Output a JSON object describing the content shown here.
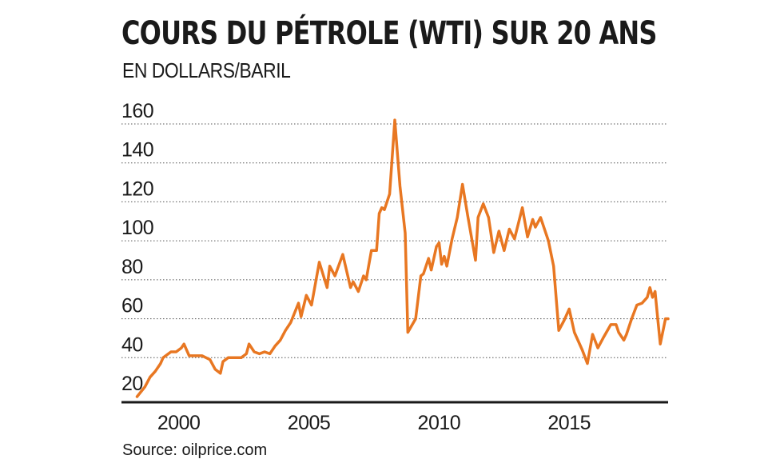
{
  "title": "COURS DU PÉTROLE (WTI) SUR 20 ANS",
  "subtitle": "EN DOLLARS/BARIL",
  "source": "Source: oilprice.com",
  "colors": {
    "line": "#e87722",
    "text": "#1a1a1a",
    "grid": "#555555",
    "axis": "#1a1a1a"
  },
  "chart_data": {
    "type": "line",
    "title": "COURS DU PÉTROLE (WTI) SUR 20 ANS",
    "ylabel": "EN DOLLARS/BARIL",
    "xlabel": "",
    "xlim": [
      1998,
      2018.3
    ],
    "ylim": [
      20,
      160
    ],
    "y_ticks": [
      20,
      40,
      60,
      80,
      100,
      120,
      140,
      160
    ],
    "x_ticks": [
      2000,
      2005,
      2010,
      2015
    ],
    "grid": "horizontal-dotted",
    "legend": "none",
    "series": [
      {
        "values": [
          [
            1998.6,
            20
          ],
          [
            1998.9,
            25
          ],
          [
            1999.1,
            30
          ],
          [
            1999.3,
            33
          ],
          [
            1999.5,
            37
          ],
          [
            1999.6,
            40
          ],
          [
            1999.9,
            43
          ],
          [
            2000.1,
            43
          ],
          [
            2000.3,
            45
          ],
          [
            2000.4,
            47
          ],
          [
            2000.6,
            41
          ],
          [
            2000.9,
            41
          ],
          [
            2001.1,
            41
          ],
          [
            2001.4,
            39
          ],
          [
            2001.6,
            34
          ],
          [
            2001.8,
            32
          ],
          [
            2001.9,
            38
          ],
          [
            2002.1,
            40
          ],
          [
            2002.4,
            40
          ],
          [
            2002.6,
            40
          ],
          [
            2002.8,
            42
          ],
          [
            2002.9,
            47
          ],
          [
            2003.1,
            43
          ],
          [
            2003.3,
            42
          ],
          [
            2003.5,
            43
          ],
          [
            2003.7,
            42
          ],
          [
            2003.9,
            46
          ],
          [
            2004.1,
            49
          ],
          [
            2004.3,
            54
          ],
          [
            2004.5,
            58
          ],
          [
            2004.8,
            68
          ],
          [
            2004.9,
            61
          ],
          [
            2005.1,
            72
          ],
          [
            2005.3,
            67
          ],
          [
            2005.6,
            89
          ],
          [
            2005.9,
            76
          ],
          [
            2006.0,
            87
          ],
          [
            2006.2,
            82
          ],
          [
            2006.5,
            93
          ],
          [
            2006.8,
            76
          ],
          [
            2006.9,
            79
          ],
          [
            2007.1,
            74
          ],
          [
            2007.3,
            82
          ],
          [
            2007.4,
            80
          ],
          [
            2007.6,
            95
          ],
          [
            2007.8,
            95
          ],
          [
            2007.9,
            114
          ],
          [
            2008.0,
            117
          ],
          [
            2008.1,
            116
          ],
          [
            2008.3,
            124
          ],
          [
            2008.5,
            162
          ],
          [
            2008.7,
            128
          ],
          [
            2008.9,
            104
          ],
          [
            2009.0,
            53
          ],
          [
            2009.3,
            60
          ],
          [
            2009.5,
            82
          ],
          [
            2009.6,
            83
          ],
          [
            2009.8,
            91
          ],
          [
            2009.9,
            85
          ],
          [
            2010.1,
            97
          ],
          [
            2010.2,
            99
          ],
          [
            2010.3,
            88
          ],
          [
            2010.4,
            92
          ],
          [
            2010.5,
            87
          ],
          [
            2010.7,
            101
          ],
          [
            2010.9,
            112
          ],
          [
            2011.1,
            129
          ],
          [
            2011.3,
            113
          ],
          [
            2011.6,
            90
          ],
          [
            2011.7,
            112
          ],
          [
            2011.9,
            119
          ],
          [
            2012.1,
            112
          ],
          [
            2012.3,
            94
          ],
          [
            2012.5,
            105
          ],
          [
            2012.7,
            95
          ],
          [
            2012.9,
            106
          ],
          [
            2013.1,
            101
          ],
          [
            2013.4,
            117
          ],
          [
            2013.6,
            102
          ],
          [
            2013.8,
            111
          ],
          [
            2013.9,
            107
          ],
          [
            2014.1,
            112
          ],
          [
            2014.4,
            100
          ],
          [
            2014.6,
            87
          ],
          [
            2014.8,
            54
          ],
          [
            2015.0,
            59
          ],
          [
            2015.2,
            65
          ],
          [
            2015.4,
            53
          ],
          [
            2015.7,
            44
          ],
          [
            2015.9,
            37
          ],
          [
            2016.1,
            52
          ],
          [
            2016.3,
            45
          ],
          [
            2016.5,
            50
          ],
          [
            2016.8,
            57
          ],
          [
            2017.0,
            57
          ],
          [
            2017.1,
            53
          ],
          [
            2017.3,
            49
          ],
          [
            2017.4,
            52
          ],
          [
            2017.6,
            60
          ],
          [
            2017.8,
            67
          ],
          [
            2018.0,
            68
          ],
          [
            2018.2,
            71
          ],
          [
            2018.3,
            76
          ],
          [
            2018.4,
            71
          ],
          [
            2018.5,
            74
          ],
          [
            2018.6,
            60
          ],
          [
            2018.7,
            47
          ],
          [
            2018.9,
            60
          ],
          [
            2019.0,
            60
          ]
        ]
      }
    ]
  }
}
